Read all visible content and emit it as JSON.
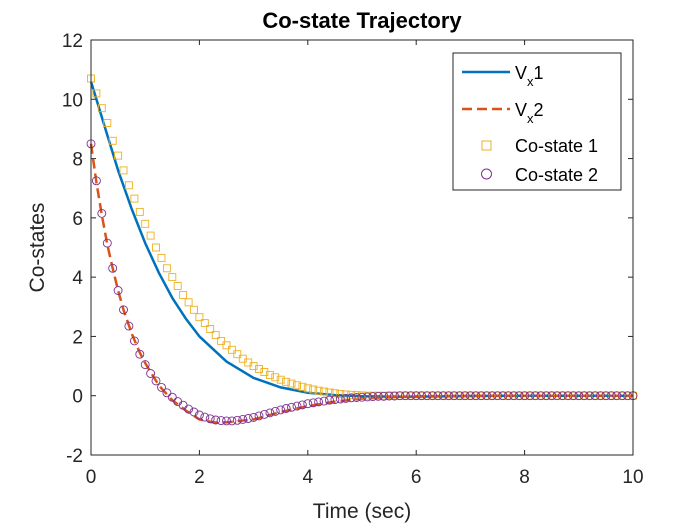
{
  "chart_data": {
    "type": "line",
    "title": "Co-state Trajectory",
    "xlabel": "Time (sec)",
    "ylabel": "Co-states",
    "xlim": [
      0,
      10
    ],
    "ylim": [
      -2,
      12
    ],
    "xticks": [
      "0",
      "2",
      "4",
      "6",
      "8",
      "10"
    ],
    "yticks": [
      "-2",
      "0",
      "2",
      "4",
      "6",
      "8",
      "10",
      "12"
    ],
    "grid": false,
    "legend_position": "top-right",
    "legend": [
      {
        "base": "V",
        "sub": "x",
        "suffix": "1",
        "style": "solid line",
        "color": "#0072BD"
      },
      {
        "base": "V",
        "sub": "x",
        "suffix": "2",
        "style": "dashed line",
        "color": "#D95319"
      },
      {
        "label": "Co-state 1",
        "style": "square markers",
        "color": "#EDB120"
      },
      {
        "label": "Co-state 2",
        "style": "circle markers",
        "color": "#7E2F8E"
      }
    ],
    "series": [
      {
        "name": "Vx1",
        "style": "solid",
        "color": "#0072BD",
        "x": [
          0,
          0.25,
          0.5,
          0.75,
          1.0,
          1.25,
          1.5,
          1.75,
          2.0,
          2.5,
          3.0,
          3.5,
          4.0,
          4.5,
          5.0,
          5.5,
          6.0,
          7.0,
          8.0,
          9.0,
          10.0
        ],
        "y": [
          10.6,
          9.1,
          7.6,
          6.3,
          5.15,
          4.15,
          3.3,
          2.6,
          2.0,
          1.15,
          0.6,
          0.28,
          0.1,
          0.02,
          -0.02,
          -0.03,
          -0.03,
          -0.01,
          0.0,
          0.0,
          0.0
        ]
      },
      {
        "name": "Vx2",
        "style": "dashed",
        "color": "#D95319",
        "x": [
          0,
          0.1,
          0.2,
          0.3,
          0.4,
          0.5,
          0.6,
          0.75,
          0.9,
          1.0,
          1.25,
          1.5,
          1.75,
          2.0,
          2.25,
          2.5,
          3.0,
          3.5,
          4.0,
          4.5,
          5.0,
          5.5,
          6.0,
          7.0,
          8.0,
          9.0,
          10.0
        ],
        "y": [
          8.5,
          7.2,
          6.1,
          5.1,
          4.3,
          3.55,
          2.9,
          2.1,
          1.45,
          1.1,
          0.35,
          -0.15,
          -0.5,
          -0.8,
          -0.9,
          -0.9,
          -0.8,
          -0.55,
          -0.35,
          -0.2,
          -0.1,
          -0.05,
          -0.02,
          0.0,
          0.0,
          0.0,
          0.0
        ]
      },
      {
        "name": "Co-state 1",
        "style": "square-markers",
        "color": "#EDB120",
        "x": [
          0.0,
          0.1,
          0.2,
          0.3,
          0.4,
          0.5,
          0.6,
          0.7,
          0.8,
          0.9,
          1.0,
          1.1,
          1.2,
          1.3,
          1.4,
          1.5,
          1.6,
          1.7,
          1.8,
          1.9,
          2.0,
          2.1,
          2.2,
          2.3,
          2.4,
          2.5,
          2.6,
          2.7,
          2.8,
          2.9,
          3.0,
          3.1,
          3.2,
          3.3,
          3.4,
          3.5,
          3.6,
          3.7,
          3.8,
          3.9,
          4.0,
          4.1,
          4.2,
          4.3,
          4.4,
          4.5,
          4.6,
          4.7,
          4.8,
          4.9,
          5.0,
          5.1,
          5.2,
          5.3,
          5.4,
          5.5,
          5.6,
          5.7,
          5.8,
          5.9,
          6.0,
          6.1,
          6.2,
          6.3,
          6.4,
          6.5,
          6.6,
          6.7,
          6.8,
          6.9,
          7.0,
          7.1,
          7.2,
          7.3,
          7.4,
          7.5,
          7.6,
          7.7,
          7.8,
          7.9,
          8.0,
          8.1,
          8.2,
          8.3,
          8.4,
          8.5,
          8.6,
          8.7,
          8.8,
          8.9,
          9.0,
          9.1,
          9.2,
          9.3,
          9.4,
          9.5,
          9.6,
          9.7,
          9.8,
          9.9,
          10.0
        ],
        "y": [
          10.7,
          10.2,
          9.7,
          9.2,
          8.6,
          8.1,
          7.6,
          7.1,
          6.65,
          6.2,
          5.8,
          5.4,
          5.0,
          4.65,
          4.3,
          4.0,
          3.7,
          3.4,
          3.15,
          2.9,
          2.65,
          2.45,
          2.25,
          2.05,
          1.85,
          1.7,
          1.55,
          1.4,
          1.25,
          1.12,
          1.0,
          0.9,
          0.8,
          0.7,
          0.62,
          0.54,
          0.47,
          0.41,
          0.35,
          0.3,
          0.25,
          0.21,
          0.17,
          0.14,
          0.11,
          0.08,
          0.06,
          0.04,
          0.03,
          0.02,
          0.01,
          0.0,
          0.0,
          0.0,
          0.0,
          0.0,
          0.0,
          0.0,
          0.0,
          0.0,
          0.0,
          0.0,
          0.0,
          0.0,
          0.0,
          0.0,
          0.0,
          0.0,
          0.0,
          0.0,
          0.0,
          0.0,
          0.0,
          0.0,
          0.0,
          0.0,
          0.0,
          0.0,
          0.0,
          0.0,
          0.0,
          0.0,
          0.0,
          0.0,
          0.0,
          0.0,
          0.0,
          0.0,
          0.0,
          0.0,
          0.0,
          0.0,
          0.0,
          0.0,
          0.0,
          0.0,
          0.0,
          0.0,
          0.0,
          0.0,
          0.0
        ]
      },
      {
        "name": "Co-state 2",
        "style": "circle-markers",
        "color": "#7E2F8E",
        "x": [
          0.0,
          0.1,
          0.2,
          0.3,
          0.4,
          0.5,
          0.6,
          0.7,
          0.8,
          0.9,
          1.0,
          1.1,
          1.2,
          1.3,
          1.4,
          1.5,
          1.6,
          1.7,
          1.8,
          1.9,
          2.0,
          2.1,
          2.2,
          2.3,
          2.4,
          2.5,
          2.6,
          2.7,
          2.8,
          2.9,
          3.0,
          3.1,
          3.2,
          3.3,
          3.4,
          3.5,
          3.6,
          3.7,
          3.8,
          3.9,
          4.0,
          4.1,
          4.2,
          4.3,
          4.4,
          4.5,
          4.6,
          4.7,
          4.8,
          4.9,
          5.0,
          5.1,
          5.2,
          5.3,
          5.4,
          5.5,
          5.6,
          5.7,
          5.8,
          5.9,
          6.0,
          6.1,
          6.2,
          6.3,
          6.4,
          6.5,
          6.6,
          6.7,
          6.8,
          6.9,
          7.0,
          7.1,
          7.2,
          7.3,
          7.4,
          7.5,
          7.6,
          7.7,
          7.8,
          7.9,
          8.0,
          8.1,
          8.2,
          8.3,
          8.4,
          8.5,
          8.6,
          8.7,
          8.8,
          8.9,
          9.0,
          9.1,
          9.2,
          9.3,
          9.4,
          9.5,
          9.6,
          9.7,
          9.8,
          9.9,
          10.0
        ],
        "y": [
          8.5,
          7.25,
          6.15,
          5.15,
          4.3,
          3.55,
          2.9,
          2.35,
          1.85,
          1.4,
          1.05,
          0.75,
          0.5,
          0.28,
          0.1,
          -0.05,
          -0.2,
          -0.32,
          -0.45,
          -0.55,
          -0.65,
          -0.72,
          -0.78,
          -0.82,
          -0.84,
          -0.85,
          -0.85,
          -0.83,
          -0.8,
          -0.77,
          -0.73,
          -0.68,
          -0.63,
          -0.58,
          -0.53,
          -0.48,
          -0.43,
          -0.39,
          -0.35,
          -0.31,
          -0.27,
          -0.24,
          -0.21,
          -0.18,
          -0.15,
          -0.13,
          -0.11,
          -0.09,
          -0.07,
          -0.06,
          -0.05,
          -0.04,
          -0.03,
          -0.02,
          -0.02,
          -0.01,
          -0.01,
          0.0,
          0.0,
          0.0,
          0.0,
          0.0,
          0.0,
          0.0,
          0.0,
          0.0,
          0.0,
          0.0,
          0.0,
          0.0,
          0.0,
          0.0,
          0.0,
          0.0,
          0.0,
          0.0,
          0.0,
          0.0,
          0.0,
          0.0,
          0.0,
          0.0,
          0.0,
          0.0,
          0.0,
          0.0,
          0.0,
          0.0,
          0.0,
          0.0,
          0.0,
          0.0,
          0.0,
          0.0,
          0.0,
          0.0,
          0.0,
          0.0,
          0.0,
          0.0,
          0.0
        ]
      }
    ]
  }
}
